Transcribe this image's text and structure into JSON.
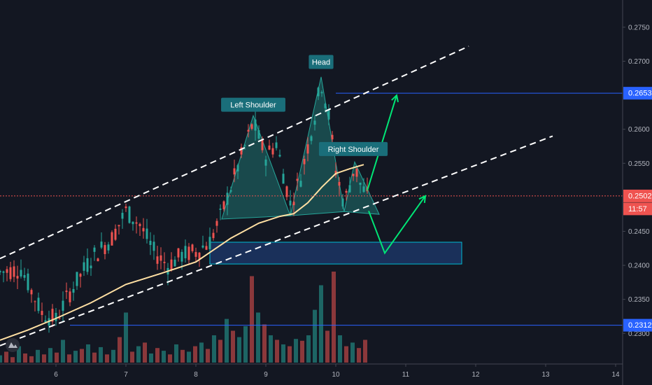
{
  "chart_data": {
    "type": "candlestick",
    "y_axis": {
      "min": 0.2255,
      "max": 0.279,
      "ticks": [
        "0.2300",
        "0.2350",
        "0.2400",
        "0.2450",
        "0.2550",
        "0.2600",
        "0.2700",
        "0.2750"
      ]
    },
    "x_axis": {
      "range": [
        5.2,
        14.1
      ],
      "ticks": [
        {
          "x": 6,
          "label": "6"
        },
        {
          "x": 7,
          "label": "7"
        },
        {
          "x": 8,
          "label": "8"
        },
        {
          "x": 9,
          "label": "9"
        },
        {
          "x": 10,
          "label": "10"
        },
        {
          "x": 11,
          "label": "11"
        },
        {
          "x": 12,
          "label": "12"
        },
        {
          "x": 13,
          "label": "13"
        },
        {
          "x": 14,
          "label": "14"
        }
      ]
    },
    "price_badges": {
      "resistance": {
        "label": "0.2653",
        "value": 0.2653,
        "color": "#2962ff"
      },
      "current": {
        "label": "0.2502",
        "value": 0.2502,
        "color": "#ef5350"
      },
      "countdown": {
        "label": "11:57",
        "value": 0.2483,
        "color": "#ef5350"
      },
      "support": {
        "label": "0.2312",
        "value": 0.2312,
        "color": "#2962ff"
      }
    },
    "pattern_labels": [
      {
        "text": "Left Shoulder",
        "x": 8.82,
        "y": 0.2636
      },
      {
        "text": "Head",
        "x": 9.79,
        "y": 0.2699
      },
      {
        "text": "Right Shoulder",
        "x": 10.25,
        "y": 0.2571
      }
    ],
    "pattern_fill": "#26a69a",
    "channel_upper": [
      [
        5.2,
        0.241
      ],
      [
        11.9,
        0.2722
      ]
    ],
    "channel_lower": [
      [
        5.2,
        0.2282
      ],
      [
        13.1,
        0.259
      ]
    ],
    "ma_line": [
      [
        5.2,
        0.229
      ],
      [
        5.6,
        0.2305
      ],
      [
        6.0,
        0.2322
      ],
      [
        6.5,
        0.2345
      ],
      [
        7.0,
        0.2372
      ],
      [
        7.5,
        0.2388
      ],
      [
        8.0,
        0.2405
      ],
      [
        8.5,
        0.244
      ],
      [
        8.9,
        0.2462
      ],
      [
        9.2,
        0.2472
      ],
      [
        9.4,
        0.2476
      ],
      [
        9.6,
        0.2492
      ],
      [
        9.8,
        0.2515
      ],
      [
        10.0,
        0.2535
      ],
      [
        10.2,
        0.2542
      ],
      [
        10.4,
        0.2548
      ]
    ],
    "demand_zone": {
      "x1": 8.2,
      "x2": 11.8,
      "y1": 0.2402,
      "y2": 0.2434
    },
    "projection_bull": [
      [
        10.45,
        0.251
      ],
      [
        10.87,
        0.265
      ]
    ],
    "projection_bear": [
      [
        10.47,
        0.248
      ],
      [
        10.7,
        0.2418
      ],
      [
        11.28,
        0.2502
      ]
    ],
    "volume": [
      {
        "x": 5.2,
        "v": 8,
        "up": true
      },
      {
        "x": 5.29,
        "v": 12,
        "up": false
      },
      {
        "x": 5.38,
        "v": 6,
        "up": false
      },
      {
        "x": 5.47,
        "v": 18,
        "up": true
      },
      {
        "x": 5.56,
        "v": 10,
        "up": false
      },
      {
        "x": 5.65,
        "v": 7,
        "up": false
      },
      {
        "x": 5.74,
        "v": 14,
        "up": true
      },
      {
        "x": 5.83,
        "v": 9,
        "up": false
      },
      {
        "x": 5.92,
        "v": 16,
        "up": true
      },
      {
        "x": 6.01,
        "v": 11,
        "up": false
      },
      {
        "x": 6.1,
        "v": 25,
        "up": true
      },
      {
        "x": 6.19,
        "v": 9,
        "up": false
      },
      {
        "x": 6.28,
        "v": 13,
        "up": true
      },
      {
        "x": 6.37,
        "v": 15,
        "up": false
      },
      {
        "x": 6.46,
        "v": 20,
        "up": true
      },
      {
        "x": 6.55,
        "v": 11,
        "up": false
      },
      {
        "x": 6.64,
        "v": 17,
        "up": true
      },
      {
        "x": 6.73,
        "v": 9,
        "up": false
      },
      {
        "x": 6.82,
        "v": 14,
        "up": true
      },
      {
        "x": 6.91,
        "v": 28,
        "up": false
      },
      {
        "x": 7.0,
        "v": 55,
        "up": true
      },
      {
        "x": 7.09,
        "v": 12,
        "up": false
      },
      {
        "x": 7.18,
        "v": 18,
        "up": true
      },
      {
        "x": 7.27,
        "v": 22,
        "up": false
      },
      {
        "x": 7.36,
        "v": 10,
        "up": true
      },
      {
        "x": 7.45,
        "v": 16,
        "up": false
      },
      {
        "x": 7.54,
        "v": 13,
        "up": true
      },
      {
        "x": 7.63,
        "v": 9,
        "up": false
      },
      {
        "x": 7.72,
        "v": 20,
        "up": true
      },
      {
        "x": 7.81,
        "v": 14,
        "up": false
      },
      {
        "x": 7.9,
        "v": 12,
        "up": true
      },
      {
        "x": 7.99,
        "v": 18,
        "up": false
      },
      {
        "x": 8.08,
        "v": 22,
        "up": true
      },
      {
        "x": 8.17,
        "v": 15,
        "up": false
      },
      {
        "x": 8.26,
        "v": 30,
        "up": true
      },
      {
        "x": 8.35,
        "v": 25,
        "up": false
      },
      {
        "x": 8.44,
        "v": 48,
        "up": true
      },
      {
        "x": 8.53,
        "v": 35,
        "up": false
      },
      {
        "x": 8.62,
        "v": 28,
        "up": true
      },
      {
        "x": 8.71,
        "v": 40,
        "up": true
      },
      {
        "x": 8.8,
        "v": 95,
        "up": false
      },
      {
        "x": 8.89,
        "v": 55,
        "up": true
      },
      {
        "x": 8.98,
        "v": 42,
        "up": false
      },
      {
        "x": 9.07,
        "v": 30,
        "up": true
      },
      {
        "x": 9.16,
        "v": 25,
        "up": false
      },
      {
        "x": 9.25,
        "v": 20,
        "up": true
      },
      {
        "x": 9.34,
        "v": 18,
        "up": false
      },
      {
        "x": 9.43,
        "v": 26,
        "up": true
      },
      {
        "x": 9.52,
        "v": 24,
        "up": false
      },
      {
        "x": 9.61,
        "v": 30,
        "up": true
      },
      {
        "x": 9.7,
        "v": 58,
        "up": true
      },
      {
        "x": 9.79,
        "v": 85,
        "up": true
      },
      {
        "x": 9.88,
        "v": 35,
        "up": false
      },
      {
        "x": 9.97,
        "v": 100,
        "up": false
      },
      {
        "x": 10.06,
        "v": 30,
        "up": true
      },
      {
        "x": 10.15,
        "v": 18,
        "up": false
      },
      {
        "x": 10.24,
        "v": 22,
        "up": true
      },
      {
        "x": 10.33,
        "v": 16,
        "up": false
      },
      {
        "x": 10.42,
        "v": 25,
        "up": false
      }
    ]
  }
}
